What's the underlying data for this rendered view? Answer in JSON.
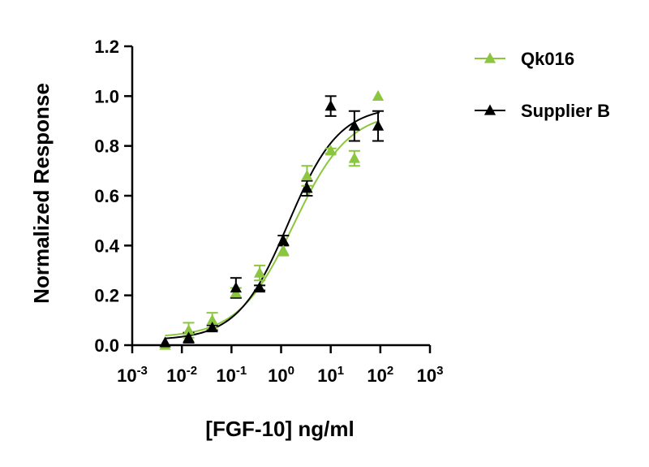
{
  "chart_data": {
    "type": "scatter",
    "title": "",
    "xlabel": "[FGF-10] ng/ml",
    "ylabel": "Normalized Response",
    "x_scale": "log",
    "xlim": [
      0.001,
      1000
    ],
    "ylim": [
      0,
      1.2
    ],
    "x_ticks": [
      {
        "value": 0.001,
        "base": "10",
        "exp": "-3"
      },
      {
        "value": 0.01,
        "base": "10",
        "exp": "-2"
      },
      {
        "value": 0.1,
        "base": "10",
        "exp": "-1"
      },
      {
        "value": 1,
        "base": "10",
        "exp": "0"
      },
      {
        "value": 10,
        "base": "10",
        "exp": "1"
      },
      {
        "value": 100,
        "base": "10",
        "exp": "2"
      },
      {
        "value": 1000,
        "base": "10",
        "exp": "3"
      }
    ],
    "y_ticks": [
      {
        "value": 0,
        "label": "0.0"
      },
      {
        "value": 0.2,
        "label": "0.2"
      },
      {
        "value": 0.4,
        "label": "0.4"
      },
      {
        "value": 0.6,
        "label": "0.6"
      },
      {
        "value": 0.8,
        "label": "0.8"
      },
      {
        "value": 1.0,
        "label": "1.0"
      },
      {
        "value": 1.2,
        "label": "1.2"
      }
    ],
    "grid": false,
    "legend_position": "top-right",
    "series": [
      {
        "name": "Qk016",
        "color": "#8cc63f",
        "marker": "triangle",
        "points": [
          {
            "x": 0.0046,
            "y": 0.0,
            "err": 0.0
          },
          {
            "x": 0.0137,
            "y": 0.06,
            "err": 0.03
          },
          {
            "x": 0.041,
            "y": 0.1,
            "err": 0.03
          },
          {
            "x": 0.123,
            "y": 0.21,
            "err": 0.02
          },
          {
            "x": 0.37,
            "y": 0.29,
            "err": 0.03
          },
          {
            "x": 1.11,
            "y": 0.38,
            "err": 0.02
          },
          {
            "x": 3.33,
            "y": 0.68,
            "err": 0.04
          },
          {
            "x": 10,
            "y": 0.78,
            "err": 0.01
          },
          {
            "x": 30,
            "y": 0.75,
            "err": 0.03
          },
          {
            "x": 90,
            "y": 1.0,
            "err": 0.0
          }
        ],
        "curve": {
          "bottom": 0.03,
          "top": 0.94,
          "ec50": 1.8,
          "hill": 0.78
        }
      },
      {
        "name": "Supplier B",
        "color": "#000000",
        "marker": "triangle",
        "points": [
          {
            "x": 0.0046,
            "y": 0.01,
            "err": 0.0
          },
          {
            "x": 0.0137,
            "y": 0.03,
            "err": 0.02
          },
          {
            "x": 0.041,
            "y": 0.07,
            "err": 0.01
          },
          {
            "x": 0.123,
            "y": 0.23,
            "err": 0.04
          },
          {
            "x": 0.37,
            "y": 0.23,
            "err": 0.01
          },
          {
            "x": 1.11,
            "y": 0.42,
            "err": 0.02
          },
          {
            "x": 3.33,
            "y": 0.63,
            "err": 0.03
          },
          {
            "x": 10,
            "y": 0.96,
            "err": 0.04
          },
          {
            "x": 30,
            "y": 0.88,
            "err": 0.06
          },
          {
            "x": 90,
            "y": 0.88,
            "err": 0.06
          }
        ],
        "curve": {
          "bottom": 0.02,
          "top": 0.96,
          "ec50": 1.4,
          "hill": 0.85
        }
      }
    ]
  }
}
